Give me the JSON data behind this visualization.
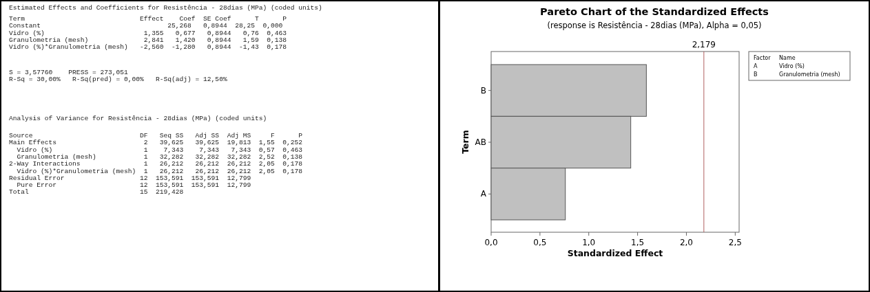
{
  "chart_data": [
    {
      "type": "other",
      "annotations": [
        "Estimated Effects and Coefficients for Resistência - 28dias (MPa) (coded units)",
        "Term                             Effect    Coef  SE Coef      T      P",
        "Constant                                25,268   0,8944  28,25  0,000",
        "Vidro (%)                         1,355   0,677   0,8944   0,76  0,463",
        "Granulometria (mesh)              2,841   1,420   0,8944   1,59  0,138",
        "Vidro (%)*Granulometria (mesh)   -2,560  -1,280   0,8944  -1,43  0,178",
        "S = 3,57760    PRESS = 273,051",
        "R-Sq = 30,00%   R-Sq(pred) = 0,00%   R-Sq(adj) = 12,50%",
        "Analysis of Variance for Resistência - 28dias (MPa) (coded units)",
        "Source                           DF   Seq SS   Adj SS  Adj MS     F      P",
        "Main Effects                      2   39,625   39,625  19,813  1,55  0,252",
        "  Vidro (%)                       1    7,343    7,343   7,343  0,57  0,463",
        "  Granulometria (mesh)            1   32,282   32,282  32,282  2,52  0,138",
        "2-Way Interactions                1   26,212   26,212  26,212  2,05  0,178",
        "  Vidro (%)*Granulometria (mesh)  1   26,212   26,212  26,212  2,05  0,178",
        "Residual Error                   12  153,591  153,591  12,799",
        "  Pure Error                     12  153,591  153,591  12,799",
        "Total                            15  219,428"
      ]
    },
    {
      "type": "bar",
      "orientation": "horizontal",
      "title": "Pareto Chart of the Standardized Effects",
      "subtitle": "(response is Resistência - 28dias (MPa), Alpha = 0,05)",
      "xlabel": "Standardized Effect",
      "ylabel": "Term",
      "categories": [
        "B",
        "AB",
        "A"
      ],
      "values": [
        1.59,
        1.43,
        0.76
      ],
      "color": "#c0c0c0",
      "xlim": [
        0,
        2.54
      ],
      "xticks": [
        {
          "value": 0,
          "label": "0,0"
        },
        {
          "value": 0.5,
          "label": "0,5"
        },
        {
          "value": 1,
          "label": "1,0"
        },
        {
          "value": 1.5,
          "label": "1,5"
        },
        {
          "value": 2,
          "label": "2,0"
        },
        {
          "value": 2.5,
          "label": "2,5"
        }
      ],
      "ref_lines": [
        {
          "axis": "x",
          "value": 2.179,
          "label": "2,179",
          "color": "#b06060"
        }
      ],
      "annotations": [
        "Factor",
        "Name",
        "A",
        "Vidro (%)",
        "B",
        "Granulometria (mesh)"
      ]
    }
  ]
}
